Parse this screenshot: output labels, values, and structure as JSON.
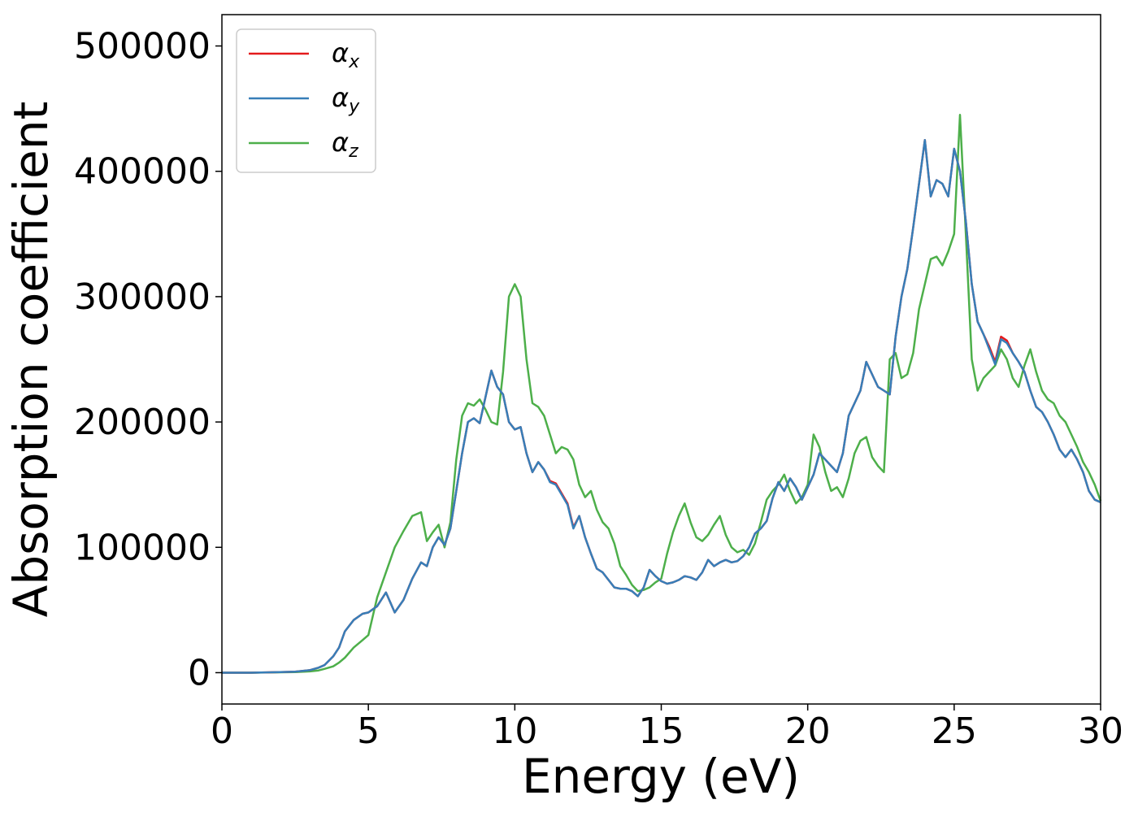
{
  "chart_data": {
    "type": "line",
    "xlabel": "Energy (eV)",
    "ylabel": "Absorption coefficient",
    "xlim": [
      0,
      30
    ],
    "ylim": [
      -25000,
      525000
    ],
    "xticks": [
      "0",
      "5",
      "10",
      "15",
      "20",
      "25",
      "30"
    ],
    "yticks": [
      "0",
      "100000",
      "200000",
      "300000",
      "400000",
      "500000"
    ],
    "grid": false,
    "legend_position": "top-left",
    "series": [
      {
        "name": "α",
        "subscript": "x",
        "color": "#e41a1c",
        "x": [
          0,
          1,
          2,
          2.5,
          3,
          3.3,
          3.5,
          3.8,
          4.0,
          4.2,
          4.5,
          4.8,
          5.0,
          5.3,
          5.6,
          5.9,
          6.2,
          6.5,
          6.8,
          7.0,
          7.2,
          7.4,
          7.6,
          7.8,
          8.0,
          8.2,
          8.4,
          8.6,
          8.8,
          9.0,
          9.2,
          9.4,
          9.6,
          9.8,
          10.0,
          10.2,
          10.4,
          10.6,
          10.8,
          11.0,
          11.2,
          11.4,
          11.6,
          11.8,
          12.0,
          12.2,
          12.4,
          12.6,
          12.8,
          13.0,
          13.2,
          13.4,
          13.6,
          13.8,
          14.0,
          14.2,
          14.4,
          14.6,
          14.8,
          15.0,
          15.2,
          15.4,
          15.6,
          15.8,
          16.0,
          16.2,
          16.4,
          16.6,
          16.8,
          17.0,
          17.2,
          17.4,
          17.6,
          17.8,
          18.0,
          18.2,
          18.4,
          18.6,
          18.8,
          19.0,
          19.2,
          19.4,
          19.6,
          19.8,
          20.0,
          20.2,
          20.4,
          20.6,
          20.8,
          21.0,
          21.2,
          21.4,
          21.6,
          21.8,
          22.0,
          22.2,
          22.4,
          22.6,
          22.8,
          23.0,
          23.2,
          23.4,
          23.6,
          23.8,
          24.0,
          24.2,
          24.4,
          24.6,
          24.8,
          25.0,
          25.2,
          25.4,
          25.6,
          25.8,
          26.0,
          26.2,
          26.4,
          26.6,
          26.8,
          27.0,
          27.2,
          27.4,
          27.6,
          27.8,
          28.0,
          28.2,
          28.4,
          28.6,
          28.8,
          29.0,
          29.2,
          29.4,
          29.6,
          29.8,
          30.0
        ],
        "y": [
          0,
          0,
          500,
          800,
          2000,
          4000,
          6000,
          13000,
          20000,
          33000,
          42000,
          47000,
          48000,
          53000,
          64000,
          48000,
          58000,
          75000,
          88000,
          85000,
          100000,
          108000,
          102000,
          115000,
          145000,
          175000,
          200000,
          203000,
          199000,
          220000,
          241000,
          228000,
          222000,
          200000,
          194000,
          196000,
          175000,
          160000,
          168000,
          162000,
          153000,
          151000,
          143000,
          135000,
          116000,
          125000,
          108000,
          95000,
          83000,
          80000,
          74000,
          68000,
          67000,
          67000,
          65000,
          61000,
          68000,
          82000,
          77000,
          73000,
          71000,
          72000,
          74000,
          77000,
          76000,
          74000,
          80000,
          90000,
          85000,
          88000,
          90000,
          88000,
          89000,
          93000,
          100000,
          111000,
          115000,
          121000,
          139000,
          152000,
          145000,
          155000,
          148000,
          138000,
          148000,
          158000,
          175000,
          170000,
          165000,
          160000,
          175000,
          205000,
          215000,
          225000,
          248000,
          238000,
          228000,
          225000,
          222000,
          268000,
          300000,
          322000,
          355000,
          390000,
          425000,
          380000,
          393000,
          390000,
          380000,
          418000,
          400000,
          360000,
          310000,
          280000,
          270000,
          260000,
          248000,
          268000,
          265000,
          255000,
          248000,
          240000,
          225000,
          212000,
          208000,
          200000,
          190000,
          178000,
          172000,
          178000,
          170000,
          160000,
          145000,
          138000,
          136000
        ]
      },
      {
        "name": "α",
        "subscript": "y",
        "color": "#377eb8",
        "x": [
          0,
          1,
          2,
          2.5,
          3,
          3.3,
          3.5,
          3.8,
          4.0,
          4.2,
          4.5,
          4.8,
          5.0,
          5.3,
          5.6,
          5.9,
          6.2,
          6.5,
          6.8,
          7.0,
          7.2,
          7.4,
          7.6,
          7.8,
          8.0,
          8.2,
          8.4,
          8.6,
          8.8,
          9.0,
          9.2,
          9.4,
          9.6,
          9.8,
          10.0,
          10.2,
          10.4,
          10.6,
          10.8,
          11.0,
          11.2,
          11.4,
          11.6,
          11.8,
          12.0,
          12.2,
          12.4,
          12.6,
          12.8,
          13.0,
          13.2,
          13.4,
          13.6,
          13.8,
          14.0,
          14.2,
          14.4,
          14.6,
          14.8,
          15.0,
          15.2,
          15.4,
          15.6,
          15.8,
          16.0,
          16.2,
          16.4,
          16.6,
          16.8,
          17.0,
          17.2,
          17.4,
          17.6,
          17.8,
          18.0,
          18.2,
          18.4,
          18.6,
          18.8,
          19.0,
          19.2,
          19.4,
          19.6,
          19.8,
          20.0,
          20.2,
          20.4,
          20.6,
          20.8,
          21.0,
          21.2,
          21.4,
          21.6,
          21.8,
          22.0,
          22.2,
          22.4,
          22.6,
          22.8,
          23.0,
          23.2,
          23.4,
          23.6,
          23.8,
          24.0,
          24.2,
          24.4,
          24.6,
          24.8,
          25.0,
          25.2,
          25.4,
          25.6,
          25.8,
          26.0,
          26.2,
          26.4,
          26.6,
          26.8,
          27.0,
          27.2,
          27.4,
          27.6,
          27.8,
          28.0,
          28.2,
          28.4,
          28.6,
          28.8,
          29.0,
          29.2,
          29.4,
          29.6,
          29.8,
          30.0
        ],
        "y": [
          0,
          0,
          500,
          800,
          2000,
          4000,
          6000,
          13000,
          20000,
          33000,
          42000,
          47000,
          48000,
          53000,
          64000,
          48000,
          58000,
          75000,
          88000,
          85000,
          100000,
          108000,
          102000,
          115000,
          145000,
          175000,
          200000,
          203000,
          199000,
          220000,
          241000,
          228000,
          222000,
          200000,
          194000,
          196000,
          175000,
          160000,
          168000,
          162000,
          152000,
          150000,
          142000,
          134000,
          115000,
          125000,
          108000,
          95000,
          83000,
          80000,
          74000,
          68000,
          67000,
          67000,
          65000,
          61000,
          68000,
          82000,
          77000,
          73000,
          71000,
          72000,
          74000,
          77000,
          76000,
          74000,
          80000,
          90000,
          85000,
          88000,
          90000,
          88000,
          89000,
          93000,
          100000,
          111000,
          115000,
          121000,
          139000,
          152000,
          145000,
          155000,
          148000,
          138000,
          148000,
          158000,
          175000,
          170000,
          165000,
          160000,
          175000,
          205000,
          215000,
          225000,
          248000,
          238000,
          228000,
          225000,
          222000,
          268000,
          300000,
          322000,
          355000,
          390000,
          425000,
          380000,
          393000,
          390000,
          380000,
          418000,
          400000,
          360000,
          310000,
          280000,
          270000,
          258000,
          246000,
          266000,
          263000,
          255000,
          248000,
          240000,
          225000,
          212000,
          208000,
          200000,
          190000,
          178000,
          172000,
          178000,
          170000,
          160000,
          145000,
          138000,
          136000
        ]
      },
      {
        "name": "α",
        "subscript": "z",
        "color": "#4daf4a",
        "x": [
          0,
          1,
          2,
          2.5,
          3,
          3.3,
          3.5,
          3.8,
          4.0,
          4.2,
          4.5,
          4.8,
          5.0,
          5.3,
          5.6,
          5.9,
          6.2,
          6.5,
          6.8,
          7.0,
          7.2,
          7.4,
          7.6,
          7.8,
          8.0,
          8.2,
          8.4,
          8.6,
          8.8,
          9.0,
          9.2,
          9.4,
          9.6,
          9.8,
          10.0,
          10.2,
          10.4,
          10.6,
          10.8,
          11.0,
          11.2,
          11.4,
          11.6,
          11.8,
          12.0,
          12.2,
          12.4,
          12.6,
          12.8,
          13.0,
          13.2,
          13.4,
          13.6,
          13.8,
          14.0,
          14.2,
          14.4,
          14.6,
          14.8,
          15.0,
          15.2,
          15.4,
          15.6,
          15.8,
          16.0,
          16.2,
          16.4,
          16.6,
          16.8,
          17.0,
          17.2,
          17.4,
          17.6,
          17.8,
          18.0,
          18.2,
          18.4,
          18.6,
          18.8,
          19.0,
          19.2,
          19.4,
          19.6,
          19.8,
          20.0,
          20.2,
          20.4,
          20.6,
          20.8,
          21.0,
          21.2,
          21.4,
          21.6,
          21.8,
          22.0,
          22.2,
          22.4,
          22.6,
          22.8,
          23.0,
          23.2,
          23.4,
          23.6,
          23.8,
          24.0,
          24.2,
          24.4,
          24.6,
          24.8,
          25.0,
          25.2,
          25.4,
          25.6,
          25.8,
          26.0,
          26.2,
          26.4,
          26.6,
          26.8,
          27.0,
          27.2,
          27.4,
          27.6,
          27.8,
          28.0,
          28.2,
          28.4,
          28.6,
          28.8,
          29.0,
          29.2,
          29.4,
          29.6,
          29.8,
          30.0
        ],
        "y": [
          0,
          0,
          300,
          500,
          1000,
          1800,
          3000,
          5000,
          8000,
          12000,
          20000,
          26000,
          30000,
          60000,
          80000,
          100000,
          113000,
          125000,
          128000,
          105000,
          112000,
          118000,
          100000,
          120000,
          170000,
          205000,
          215000,
          213000,
          218000,
          210000,
          200000,
          198000,
          240000,
          300000,
          310000,
          300000,
          250000,
          215000,
          212000,
          205000,
          190000,
          175000,
          180000,
          178000,
          170000,
          150000,
          140000,
          145000,
          130000,
          120000,
          115000,
          103000,
          85000,
          78000,
          70000,
          65000,
          66000,
          68000,
          72000,
          75000,
          95000,
          112000,
          125000,
          135000,
          120000,
          108000,
          105000,
          110000,
          118000,
          125000,
          110000,
          100000,
          96000,
          98000,
          94000,
          103000,
          120000,
          138000,
          145000,
          150000,
          158000,
          145000,
          135000,
          140000,
          150000,
          190000,
          180000,
          160000,
          145000,
          148000,
          140000,
          155000,
          175000,
          185000,
          188000,
          172000,
          165000,
          160000,
          250000,
          255000,
          235000,
          238000,
          255000,
          290000,
          310000,
          330000,
          332000,
          325000,
          336000,
          350000,
          445000,
          350000,
          250000,
          225000,
          235000,
          240000,
          245000,
          258000,
          250000,
          235000,
          228000,
          245000,
          258000,
          240000,
          225000,
          218000,
          215000,
          205000,
          200000,
          190000,
          180000,
          168000,
          160000,
          150000,
          137000
        ]
      }
    ]
  }
}
